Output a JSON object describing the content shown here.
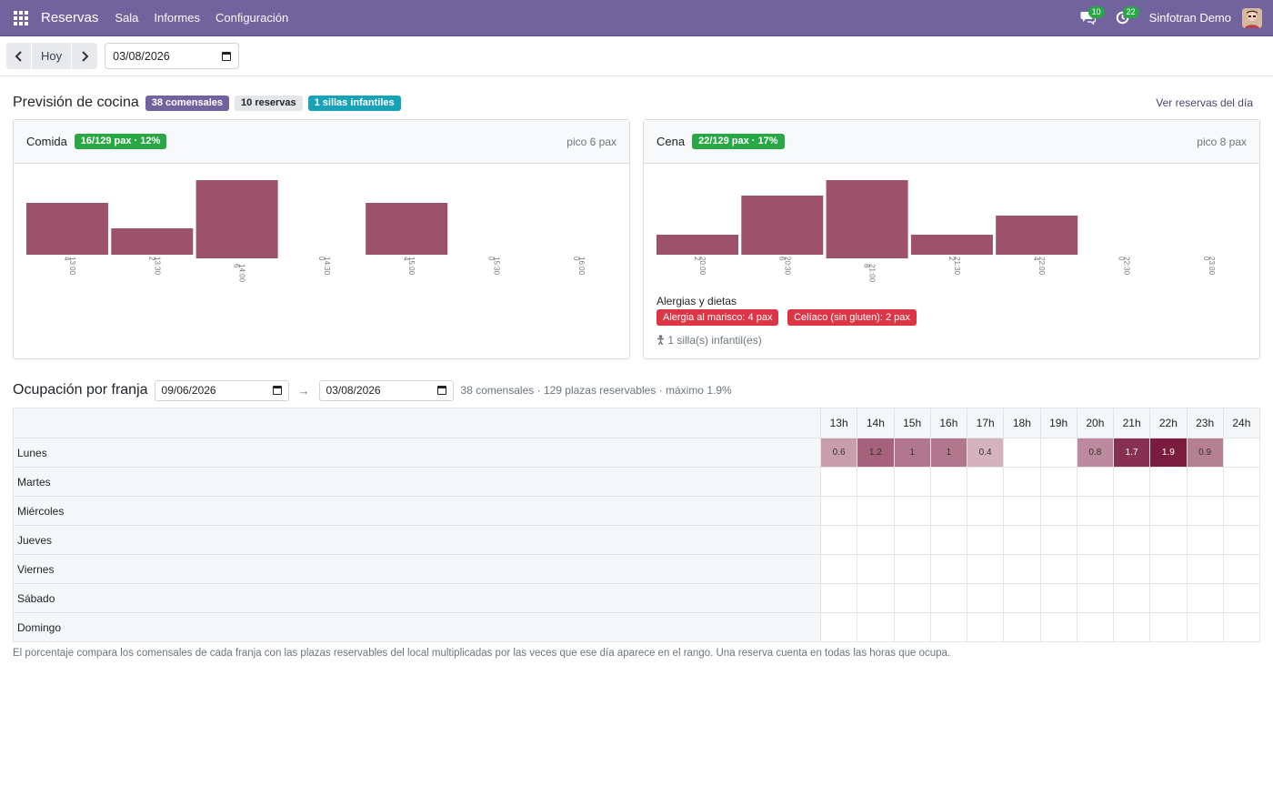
{
  "navbar": {
    "app": "Reservas",
    "menus": [
      "Sala",
      "Informes",
      "Configuración"
    ],
    "messages_count": "10",
    "activities_count": "22",
    "user": "Sinfotran Demo"
  },
  "controls": {
    "today_label": "Hoy",
    "date": "03/08/2026"
  },
  "forecast": {
    "title": "Previsión de cocina",
    "badges": {
      "diners": "38 comensales",
      "reservations": "10 reservas",
      "high_chairs": "1 sillas infantiles"
    },
    "link": "Ver reservas del día",
    "lunch": {
      "title": "Comida",
      "badge": "16/129 pax · 12%",
      "peak": "pico 6 pax"
    },
    "dinner": {
      "title": "Cena",
      "badge": "22/129 pax · 17%",
      "peak": "pico 8 pax",
      "allergies_title": "Alergias y dietas",
      "allergies": [
        "Alergia al marisco: 4 pax",
        "Celíaco (sin gluten): 2 pax"
      ],
      "chairs": "1 silla(s) infantil(es)"
    }
  },
  "chart_data": [
    {
      "type": "bar",
      "categories": [
        "13:00",
        "13:30",
        "14:00",
        "14:30",
        "15:00",
        "15:30",
        "16:00"
      ],
      "values": [
        4,
        2,
        6,
        0,
        4,
        0,
        0
      ],
      "ylim": [
        0,
        6
      ]
    },
    {
      "type": "bar",
      "categories": [
        "20:00",
        "20:30",
        "21:00",
        "21:30",
        "22:00",
        "22:30",
        "23:00"
      ],
      "values": [
        2,
        6,
        8,
        2,
        4,
        0,
        0
      ],
      "ylim": [
        0,
        8
      ]
    }
  ],
  "occupancy": {
    "title": "Ocupación por franja",
    "date_from": "09/06/2026",
    "arrow": "→",
    "date_to": "03/08/2026",
    "info": "38 comensales · 129 plazas reservables · máximo 1.9%",
    "hours": [
      "13h",
      "14h",
      "15h",
      "16h",
      "17h",
      "18h",
      "19h",
      "20h",
      "21h",
      "22h",
      "23h",
      "24h"
    ],
    "rows": [
      {
        "day": "Lunes",
        "values": [
          "0.6",
          "1.2",
          "1",
          "1",
          "0.4",
          "",
          "",
          "0.8",
          "1.7",
          "1.9",
          "0.9",
          ""
        ]
      },
      {
        "day": "Martes",
        "values": [
          "",
          "",
          "",
          "",
          "",
          "",
          "",
          "",
          "",
          "",
          "",
          ""
        ]
      },
      {
        "day": "Miércoles",
        "values": [
          "",
          "",
          "",
          "",
          "",
          "",
          "",
          "",
          "",
          "",
          "",
          ""
        ]
      },
      {
        "day": "Jueves",
        "values": [
          "",
          "",
          "",
          "",
          "",
          "",
          "",
          "",
          "",
          "",
          "",
          ""
        ]
      },
      {
        "day": "Viernes",
        "values": [
          "",
          "",
          "",
          "",
          "",
          "",
          "",
          "",
          "",
          "",
          "",
          ""
        ]
      },
      {
        "day": "Sábado",
        "values": [
          "",
          "",
          "",
          "",
          "",
          "",
          "",
          "",
          "",
          "",
          "",
          ""
        ]
      },
      {
        "day": "Domingo",
        "values": [
          "",
          "",
          "",
          "",
          "",
          "",
          "",
          "",
          "",
          "",
          "",
          ""
        ]
      }
    ],
    "note": "El porcentaje compara los comensales de cada franja con las plazas reservables del local multiplicadas por las veces que ese día aparece en el rango. Una reserva cuenta en todas las horas que ocupa."
  },
  "colors": {
    "brand": "#71639e",
    "bar": "#9b526a",
    "heat_max": "#7b1c3e"
  }
}
